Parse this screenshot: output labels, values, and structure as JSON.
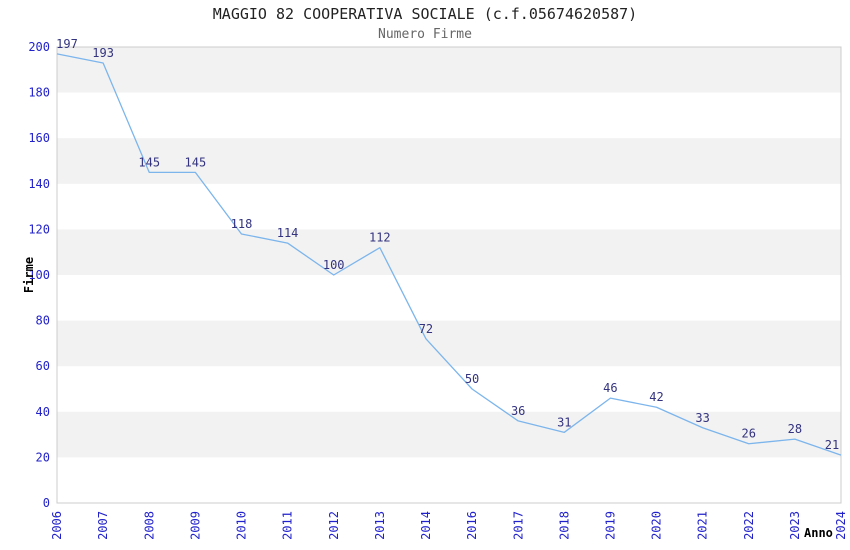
{
  "page": {
    "background": "#ffffff"
  },
  "chart_data": {
    "type": "line",
    "title": "MAGGIO 82 COOPERATIVA SOCIALE (c.f.05674620587)",
    "subtitle": "Numero Firme",
    "xlabel": "Anno",
    "ylabel": "Firme",
    "categories": [
      "2006",
      "2007",
      "2008",
      "2009",
      "2010",
      "2011",
      "2012",
      "2013",
      "2014",
      "2016",
      "2017",
      "2018",
      "2019",
      "2020",
      "2021",
      "2022",
      "2023",
      "2024"
    ],
    "series": [
      {
        "name": "Numero Firme",
        "values": [
          197,
          193,
          145,
          145,
          118,
          114,
          100,
          112,
          72,
          50,
          36,
          31,
          46,
          42,
          33,
          26,
          28,
          21
        ]
      }
    ],
    "ylim": [
      0,
      200
    ],
    "ytick_step": 20,
    "yticks": [
      0,
      20,
      40,
      60,
      80,
      100,
      120,
      140,
      160,
      180,
      200
    ],
    "xtick_rotation": -90,
    "grid": "alternating-horizontal-bands",
    "legend": "none",
    "markers": "none",
    "colors": {
      "line": "#7cb5ec",
      "data_label": "#333380",
      "tick_label": "#2222cc",
      "axis_title": "#000000",
      "band": "#f2f2f2",
      "plot_border": "#cccccc",
      "title": "#222222",
      "subtitle": "#666666"
    }
  }
}
